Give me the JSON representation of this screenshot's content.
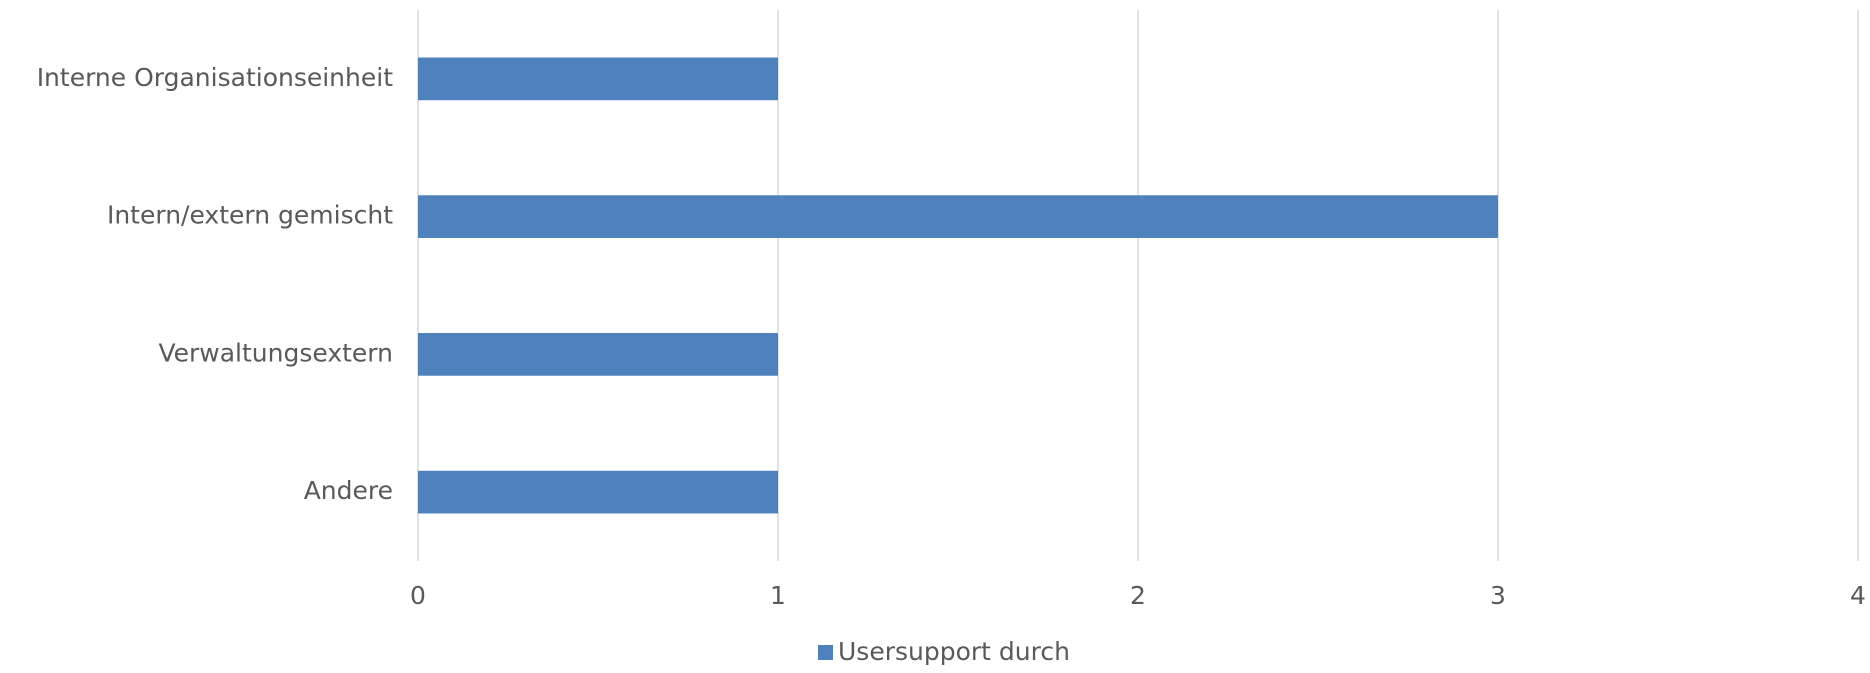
{
  "chart_data": {
    "type": "bar",
    "orientation": "horizontal",
    "categories": [
      "Interne Organisationseinheit",
      "Intern/extern gemischt",
      "Verwaltungsextern",
      "Andere"
    ],
    "series": [
      {
        "name": "Usersupport durch",
        "color": "#4f81bd",
        "values": [
          1,
          3,
          1,
          1
        ]
      }
    ],
    "xlim": [
      0,
      4
    ],
    "xticks": [
      0,
      1,
      2,
      3,
      4
    ],
    "grid": true,
    "legend": "bottom"
  }
}
